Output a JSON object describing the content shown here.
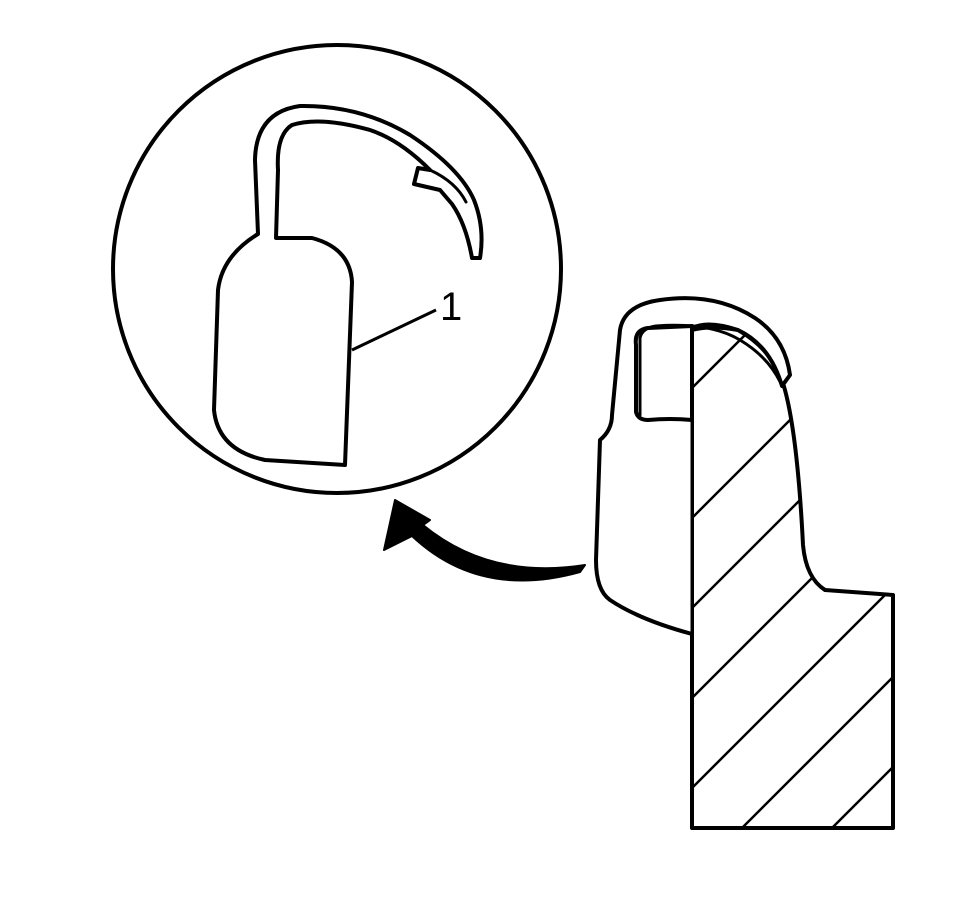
{
  "diagram": {
    "callouts": [
      {
        "label": "1"
      }
    ]
  },
  "colors": {
    "line": "#000000",
    "background": "#ffffff"
  }
}
